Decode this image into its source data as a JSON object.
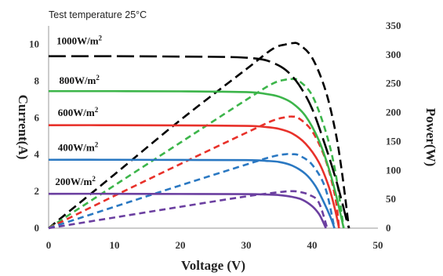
{
  "chart_data": {
    "type": "line",
    "title": "Test  temperature 25°C",
    "xlabel": "Voltage (V)",
    "ylabel_left": "Current(A)",
    "ylabel_right": "Power(W)",
    "xlim": [
      0,
      50
    ],
    "ylim_left": [
      0,
      11
    ],
    "ylim_right": [
      0,
      350
    ],
    "x_ticks": [
      "0",
      "10",
      "20",
      "30",
      "40",
      "50"
    ],
    "y_left_ticks": [
      "0",
      "2",
      "4",
      "6",
      "8",
      "10"
    ],
    "y_right_ticks": [
      "0",
      "50",
      "100",
      "150",
      "200",
      "250",
      "300",
      "350"
    ],
    "grid": false,
    "colors": {
      "1000W/m2": "#000000",
      "800W/m2": "#3cb54a",
      "600W/m2": "#e8312a",
      "400W/m2": "#2a78c2",
      "200W/m2": "#6b3fa0"
    },
    "series": [
      {
        "name": "1000W/m2",
        "label": "1000W/m²",
        "label_pos": {
          "x": 1.2,
          "y": 10.0
        },
        "current": {
          "x": [
            0,
            10,
            20,
            28,
            32,
            34,
            36,
            38,
            40,
            42,
            43.5,
            44.5,
            45.2,
            45.6
          ],
          "y": [
            9.35,
            9.35,
            9.33,
            9.3,
            9.2,
            9.0,
            8.6,
            7.8,
            6.5,
            4.5,
            2.8,
            1.5,
            0.5,
            0.0
          ]
        },
        "power": {
          "x": [
            0,
            10,
            20,
            30,
            34,
            36,
            37,
            38,
            40,
            42,
            43.5,
            44.5,
            45.6
          ],
          "y": [
            0,
            93,
            187,
            275,
            310,
            318,
            320,
            318,
            295,
            240,
            170,
            100,
            0
          ]
        }
      },
      {
        "name": "800W/m2",
        "label": "800W/m²",
        "label_pos": {
          "x": 1.6,
          "y": 7.85
        },
        "current": {
          "x": [
            0,
            10,
            20,
            30,
            33,
            35,
            37,
            39,
            41,
            42.5,
            43.5,
            44.3,
            44.8
          ],
          "y": [
            7.45,
            7.45,
            7.44,
            7.4,
            7.3,
            7.15,
            6.8,
            6.1,
            4.8,
            3.3,
            2.0,
            0.8,
            0.0
          ]
        },
        "power": {
          "x": [
            0,
            10,
            20,
            30,
            34,
            36,
            37,
            38,
            40,
            42,
            43.5,
            44.8
          ],
          "y": [
            0,
            74,
            148,
            222,
            250,
            257,
            258,
            255,
            230,
            170,
            100,
            0
          ]
        }
      },
      {
        "name": "600W/m2",
        "label": "600W/m²",
        "label_pos": {
          "x": 1.4,
          "y": 6.1
        },
        "current": {
          "x": [
            0,
            10,
            20,
            30,
            33,
            35,
            37,
            39,
            41,
            42.5,
            43.5,
            44.1
          ],
          "y": [
            5.6,
            5.6,
            5.59,
            5.56,
            5.5,
            5.4,
            5.15,
            4.6,
            3.6,
            2.3,
            1.0,
            0.0
          ]
        },
        "power": {
          "x": [
            0,
            10,
            20,
            30,
            34,
            36,
            37,
            38,
            40,
            42,
            43.5,
            44.1
          ],
          "y": [
            0,
            56,
            111,
            165,
            186,
            192,
            193,
            190,
            168,
            120,
            55,
            0
          ]
        }
      },
      {
        "name": "400W/m2",
        "label": "400W/m²",
        "label_pos": {
          "x": 1.4,
          "y": 4.2
        },
        "current": {
          "x": [
            0,
            10,
            20,
            30,
            33,
            35,
            37,
            39,
            40.5,
            41.8,
            42.8,
            43.4
          ],
          "y": [
            3.72,
            3.72,
            3.71,
            3.7,
            3.66,
            3.6,
            3.4,
            2.95,
            2.3,
            1.4,
            0.6,
            0.0
          ]
        },
        "power": {
          "x": [
            0,
            10,
            20,
            30,
            34,
            36,
            37,
            38,
            40,
            42,
            43.4
          ],
          "y": [
            0,
            37,
            74,
            110,
            124,
            128,
            128,
            126,
            110,
            70,
            0
          ]
        }
      },
      {
        "name": "200W/m2",
        "label": "200W/m²",
        "label_pos": {
          "x": 1.0,
          "y": 2.35
        },
        "current": {
          "x": [
            0,
            10,
            20,
            30,
            33,
            35,
            37,
            38.5,
            40,
            41,
            41.6,
            42.1
          ],
          "y": [
            1.87,
            1.87,
            1.86,
            1.85,
            1.83,
            1.8,
            1.7,
            1.55,
            1.2,
            0.8,
            0.4,
            0.0
          ]
        },
        "power": {
          "x": [
            0,
            10,
            20,
            30,
            34,
            36,
            37,
            38,
            39.5,
            41,
            42.3
          ],
          "y": [
            0,
            18.5,
            37,
            55,
            61,
            63.5,
            64,
            63,
            58,
            45,
            0
          ]
        }
      }
    ]
  }
}
